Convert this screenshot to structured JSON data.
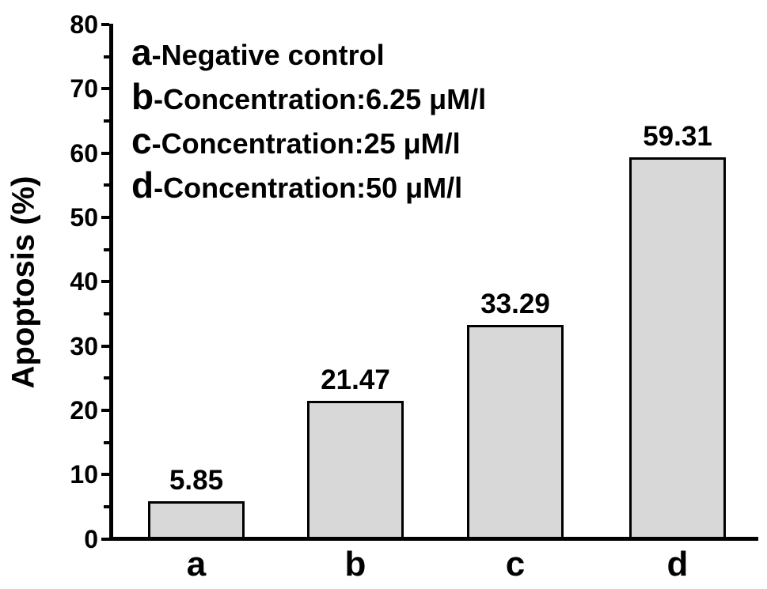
{
  "chart_data": {
    "type": "bar",
    "title": "",
    "ylabel": "Apoptosis (%)",
    "xlabel": "",
    "categories": [
      "a",
      "b",
      "c",
      "d"
    ],
    "values": [
      5.85,
      21.47,
      33.29,
      59.31
    ],
    "bar_value_labels": [
      "5.85",
      "21.47",
      "33.29",
      "59.31"
    ],
    "ylim": [
      0,
      80
    ],
    "yticks_major": [
      0,
      10,
      20,
      30,
      40,
      50,
      60,
      70,
      80
    ],
    "yticks_minor": [
      5,
      15,
      25,
      35,
      45,
      55,
      65,
      75
    ],
    "grid": false,
    "legend_position": "inside-top-left",
    "legend": [
      {
        "key": "a",
        "text": "-Negative control"
      },
      {
        "key": "b",
        "text": "-Concentration:6.25 μM/l"
      },
      {
        "key": "c",
        "text": "-Concentration:25 μM/l"
      },
      {
        "key": "d",
        "text": "-Concentration:50 μM/l"
      }
    ],
    "colors": {
      "bar_fill": "#d8d8d8",
      "bar_border": "#000000",
      "axis": "#000000",
      "text": "#000000",
      "background": "#ffffff"
    }
  }
}
